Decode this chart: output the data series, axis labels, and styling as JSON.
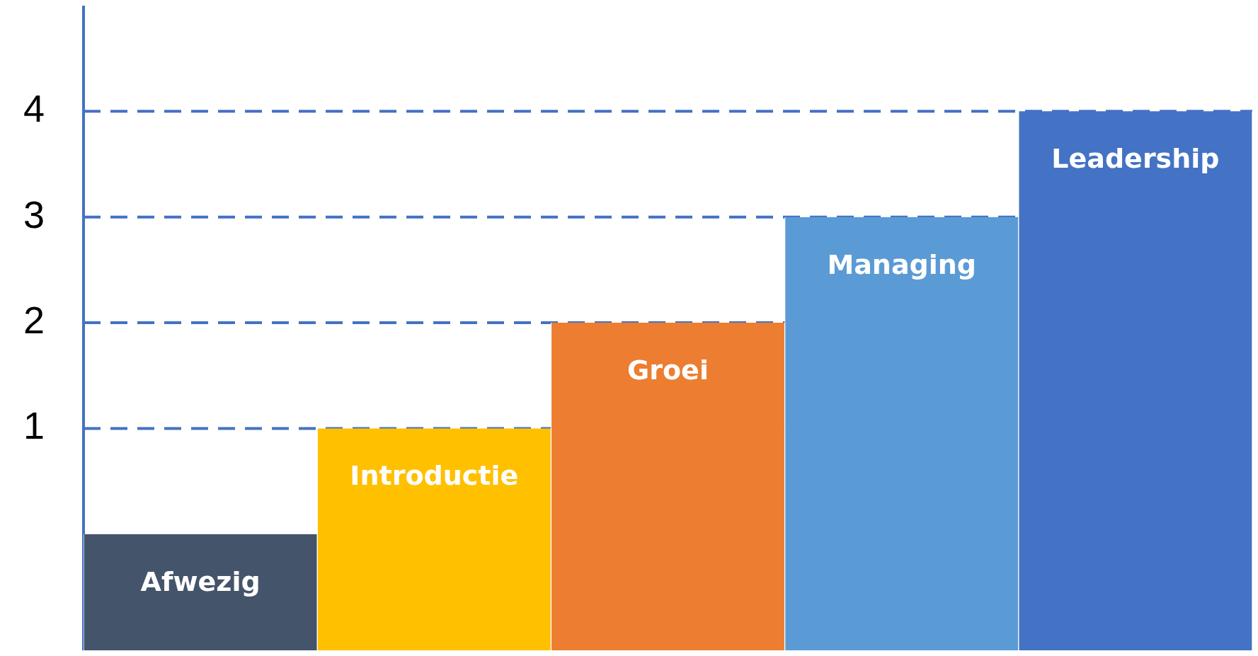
{
  "chart_data": {
    "type": "bar",
    "categories": [
      "Afwezig",
      "Introductie",
      "Groei",
      "Managing",
      "Leadership"
    ],
    "base": [
      -1.1,
      -1.1,
      -1.1,
      -1.1,
      -1.1
    ],
    "values": [
      1.1,
      2.1,
      3.1,
      4.1,
      5.1
    ],
    "colors": [
      "#44546a",
      "#ffc000",
      "#ed7d31",
      "#5b9bd5",
      "#4472c4"
    ],
    "ylim": [
      -1.1,
      5
    ],
    "yticks": [
      1,
      2,
      3,
      4
    ],
    "grid": false,
    "legend": false,
    "tick_labels": "y",
    "ref_lines": [
      {
        "axis": "y",
        "value": 1,
        "color": "#4472c4",
        "line_style": "dashed"
      },
      {
        "axis": "y",
        "value": 2,
        "color": "#4472c4",
        "line_style": "dashed"
      },
      {
        "axis": "y",
        "value": 3,
        "color": "#4472c4",
        "line_style": "dashed"
      },
      {
        "axis": "y",
        "value": 4,
        "color": "#4472c4",
        "line_style": "dashed"
      }
    ]
  }
}
